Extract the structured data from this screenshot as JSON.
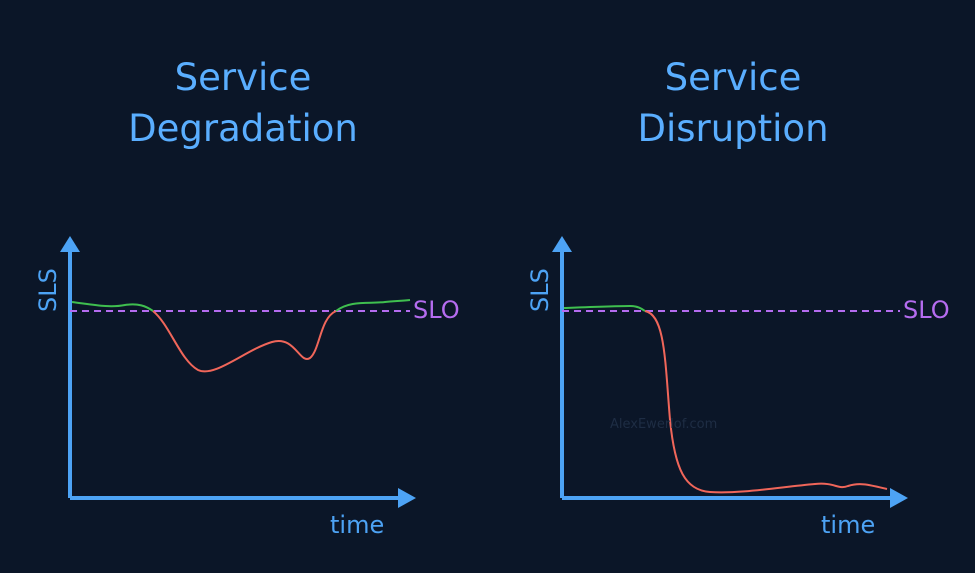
{
  "panels": [
    {
      "title_lines": [
        "Service",
        "Degradation"
      ],
      "y_label": "SLS",
      "x_label": "time",
      "threshold_label": "SLO"
    },
    {
      "title_lines": [
        "Service",
        "Disruption"
      ],
      "y_label": "SLS",
      "x_label": "time",
      "threshold_label": "SLO"
    }
  ],
  "watermark": "AlexEwerlof.com"
}
